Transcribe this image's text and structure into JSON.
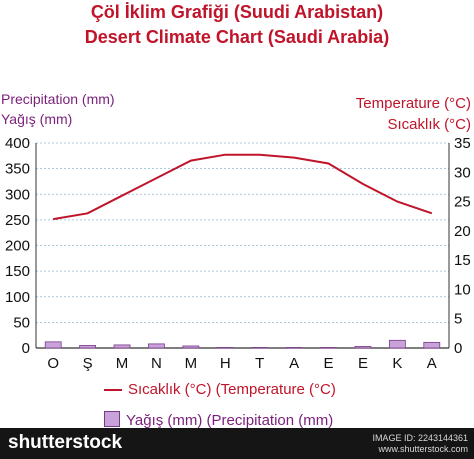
{
  "header": {
    "title_tr": "Çöl İklim Grafiği (Suudi Arabistan)",
    "title_en": "Desert Climate Chart (Saudi Arabia)"
  },
  "left_axis": {
    "label_en": "Precipitation (mm)",
    "label_tr": "Yağış (mm)"
  },
  "right_axis": {
    "label_en": "Temperature (°C)",
    "label_tr": "Sıcaklık (°C)"
  },
  "legend": {
    "temperature": "Sıcaklık (°C) (Temperature (°C)",
    "precipitation": "Yağış (mm) (Precipitation (mm)"
  },
  "colors": {
    "title": "#c0142a",
    "line": "#c0142a",
    "bar": "#c8a2d8",
    "left_label": "#7a1f7a"
  },
  "footer": {
    "logo": "shutterstock",
    "image_id": "IMAGE ID: 2243144361",
    "site": "www.shutterstock.com"
  },
  "chart_data": {
    "type": "bar",
    "categories": [
      "O",
      "Ş",
      "M",
      "N",
      "M",
      "H",
      "T",
      "A",
      "E",
      "E",
      "K",
      "A"
    ],
    "series": [
      {
        "type": "bar",
        "axis": "left",
        "values": [
          12,
          5,
          6,
          8,
          4,
          1,
          1,
          1,
          1,
          3,
          15,
          11
        ]
      },
      {
        "type": "line",
        "axis": "right",
        "values": [
          22,
          23,
          26,
          29,
          32,
          33,
          33,
          32.5,
          31.5,
          28,
          25,
          23
        ]
      }
    ],
    "ylim_left": [
      0,
      400
    ],
    "ylim_right": [
      0,
      35
    ],
    "yticks_left": [
      0,
      50,
      100,
      150,
      200,
      250,
      300,
      350,
      400
    ],
    "yticks_right": [
      0,
      5,
      10,
      15,
      20,
      25,
      30,
      35
    ],
    "grid": true
  }
}
